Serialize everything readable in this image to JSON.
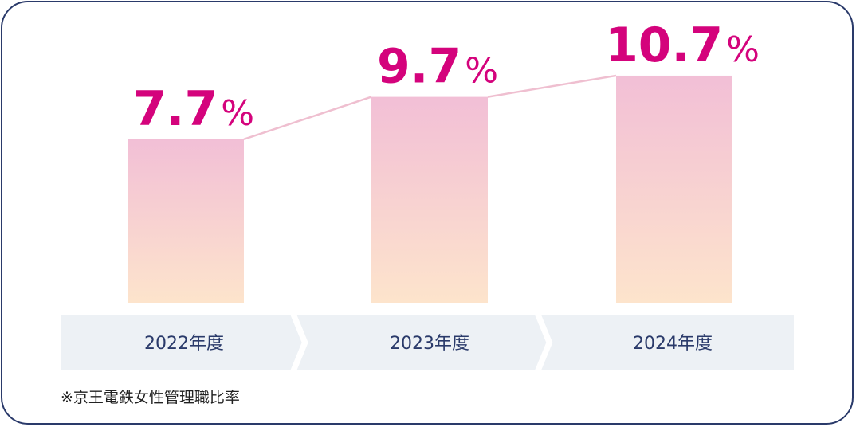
{
  "chart_data": {
    "type": "bar",
    "categories": [
      "2022年度",
      "2023年度",
      "2024年度"
    ],
    "values": [
      7.7,
      9.7,
      10.7
    ],
    "unit": "%",
    "connector_line": true,
    "ylim": [
      0,
      12.5
    ]
  },
  "note": "※京王電鉄女性管理職比率",
  "colors": {
    "value_text": "#d4037c",
    "bar_top": "#f2bfd6",
    "bar_bottom": "#fde4cc",
    "connector": "#efbfd0",
    "label_band": "#edf1f5",
    "label_text": "#2a3a6a",
    "border": "#2a3a6a"
  }
}
